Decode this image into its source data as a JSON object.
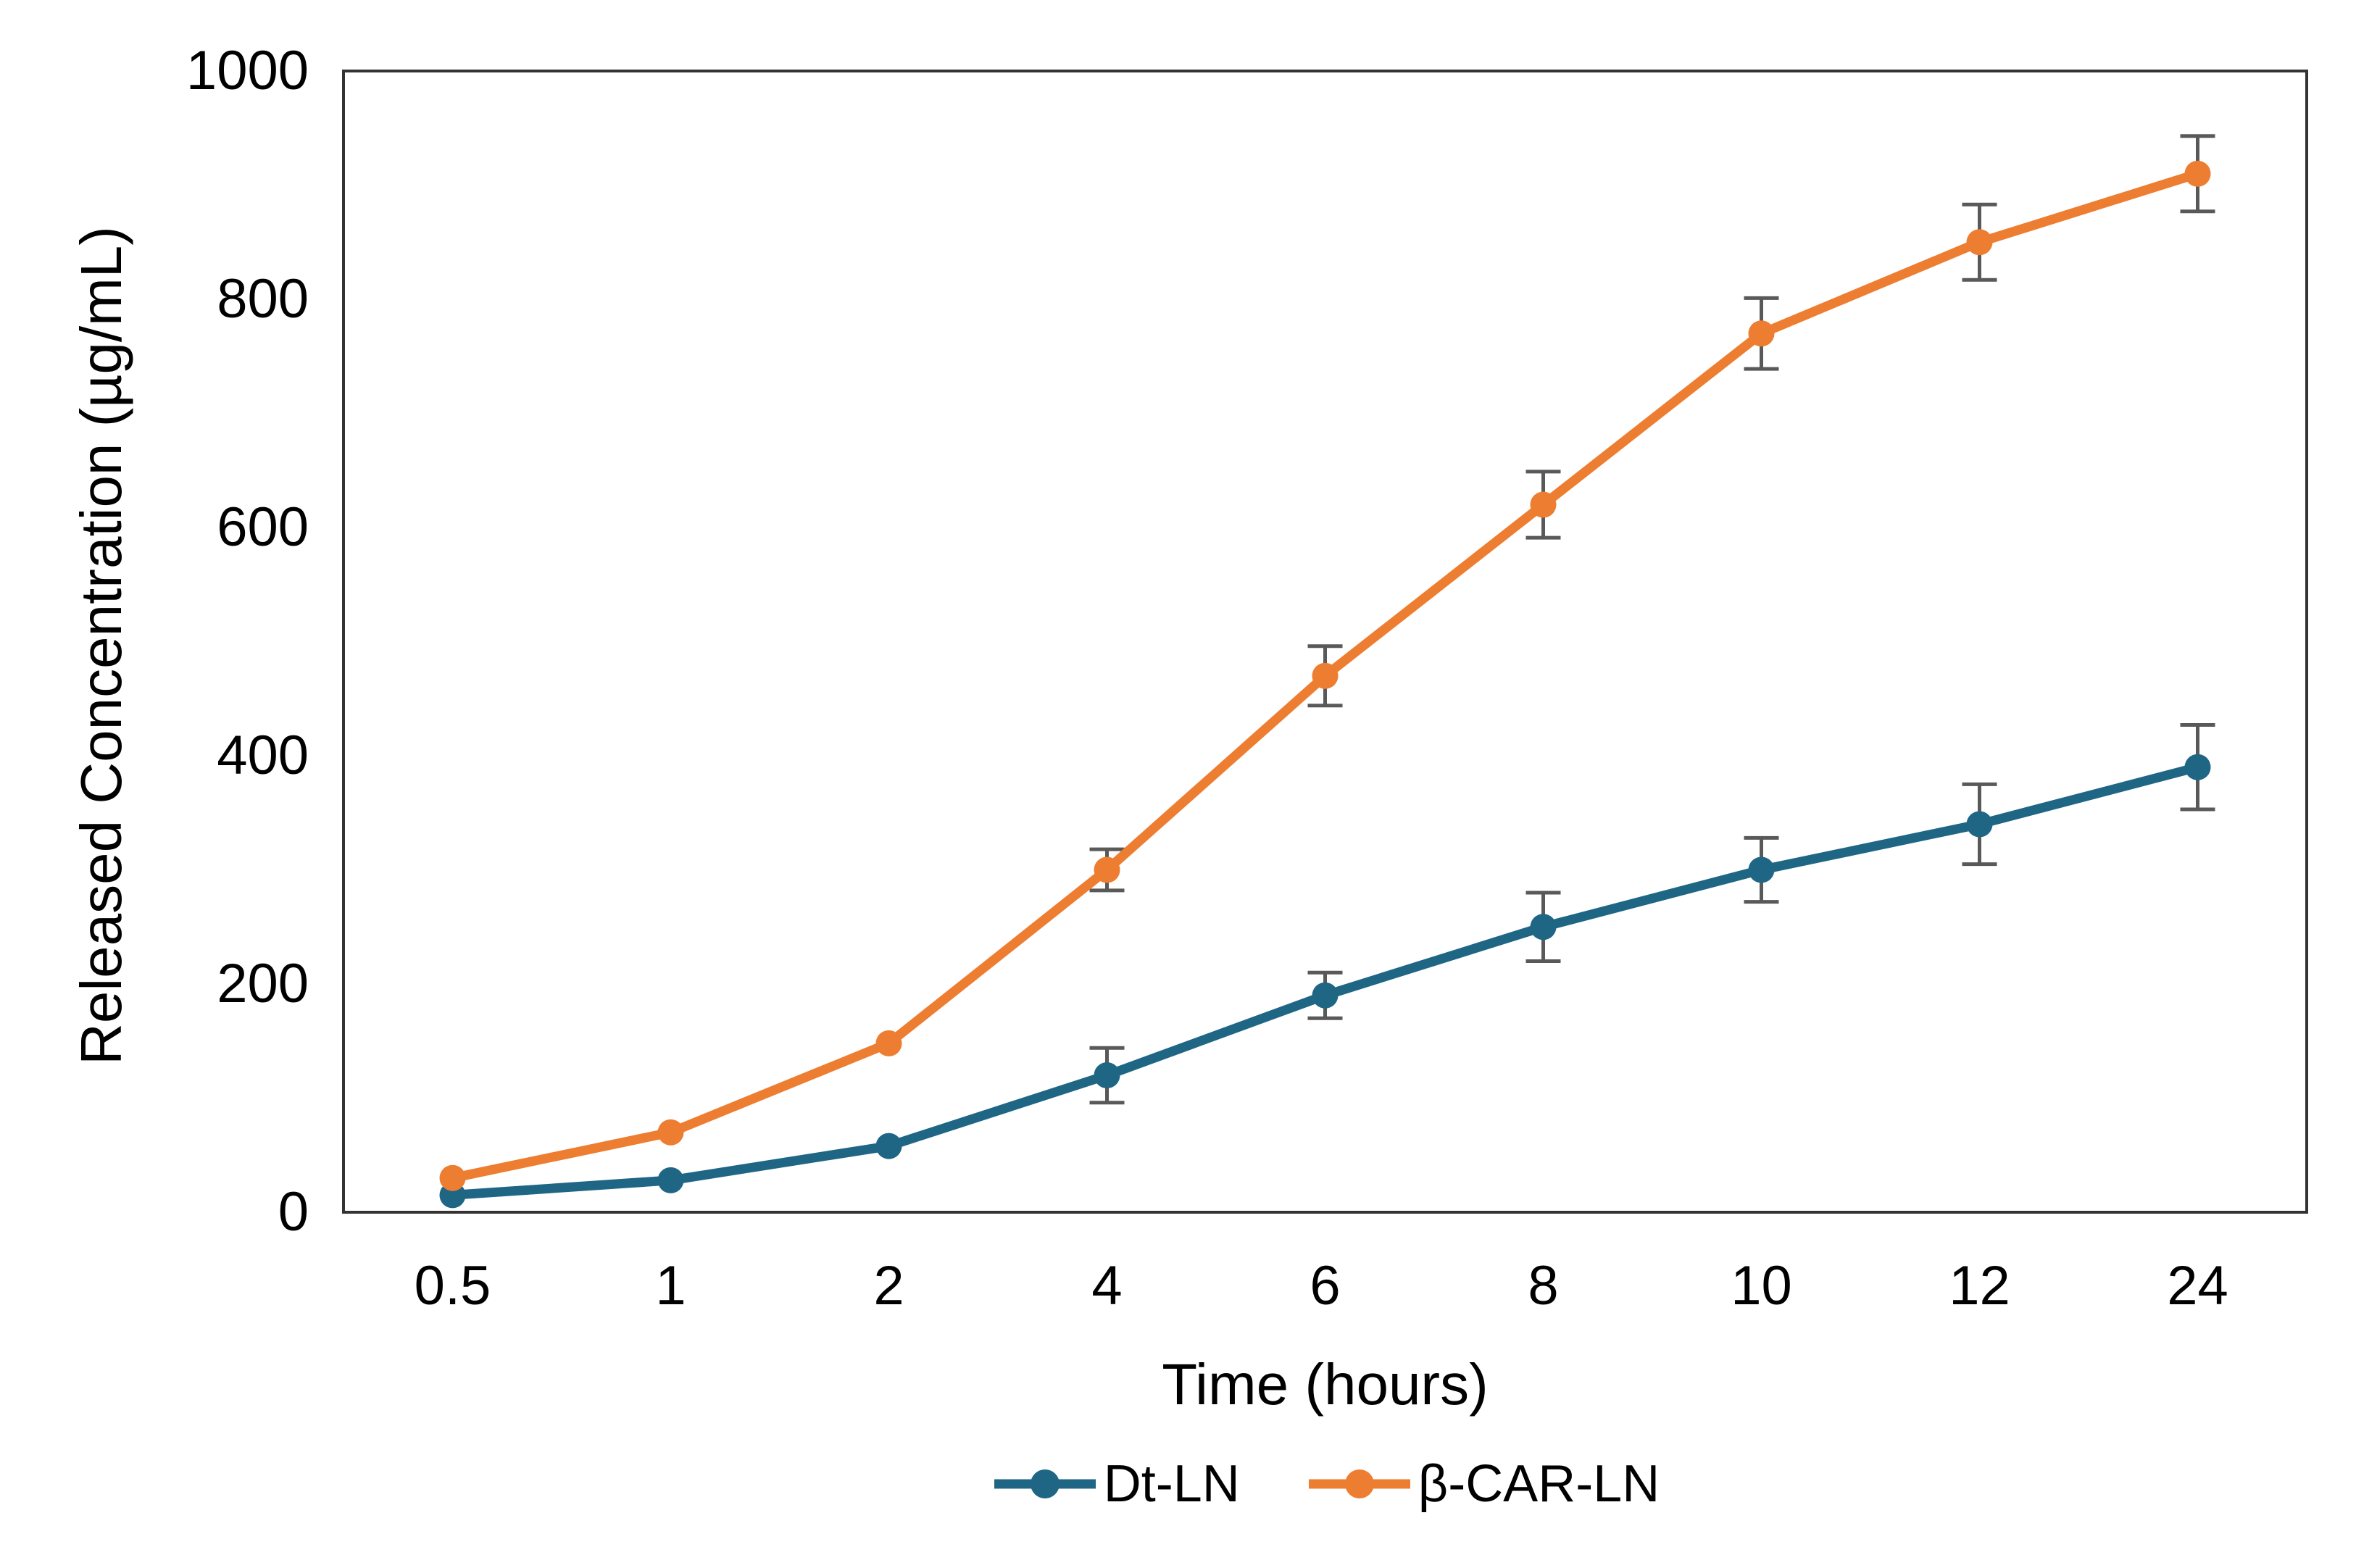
{
  "chart_data": {
    "type": "line",
    "title": "",
    "categories": [
      "0.5",
      "1",
      "2",
      "4",
      "6",
      "8",
      "10",
      "12",
      "24"
    ],
    "xlabel": "Time (hours)",
    "ylabel": "Released Concentration (µg/mL)",
    "ylim": [
      0,
      1000
    ],
    "y_ticks": [
      0,
      200,
      400,
      600,
      800,
      1000
    ],
    "grid": false,
    "legend_position": "bottom-center",
    "series": [
      {
        "name": "Dt-LN",
        "color": "#1F6685",
        "values": [
          15,
          28,
          58,
          120,
          190,
          250,
          300,
          340,
          390
        ],
        "errors": [
          0,
          0,
          0,
          24,
          20,
          30,
          28,
          35,
          37
        ]
      },
      {
        "name": "β-CAR-LN",
        "color": "#ED7D31",
        "values": [
          30,
          70,
          148,
          300,
          470,
          620,
          770,
          850,
          910
        ],
        "errors": [
          0,
          0,
          0,
          18,
          26,
          29,
          31,
          33,
          33
        ]
      }
    ],
    "error_bar_color": "#595959",
    "axis_color": "#333333",
    "text_color": "#000000"
  }
}
